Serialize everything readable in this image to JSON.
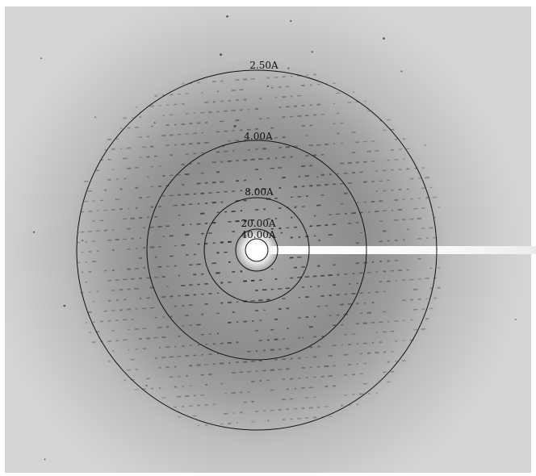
{
  "image": {
    "kind": "x-ray diffraction pattern",
    "background_color": "#d2d2d2",
    "ring_color": "#111111"
  },
  "resolution_rings": [
    {
      "label": "2.50A"
    },
    {
      "label": "4.00A"
    },
    {
      "label": "8.00A"
    },
    {
      "label": "20.00A"
    },
    {
      "label": "40.00A"
    }
  ]
}
